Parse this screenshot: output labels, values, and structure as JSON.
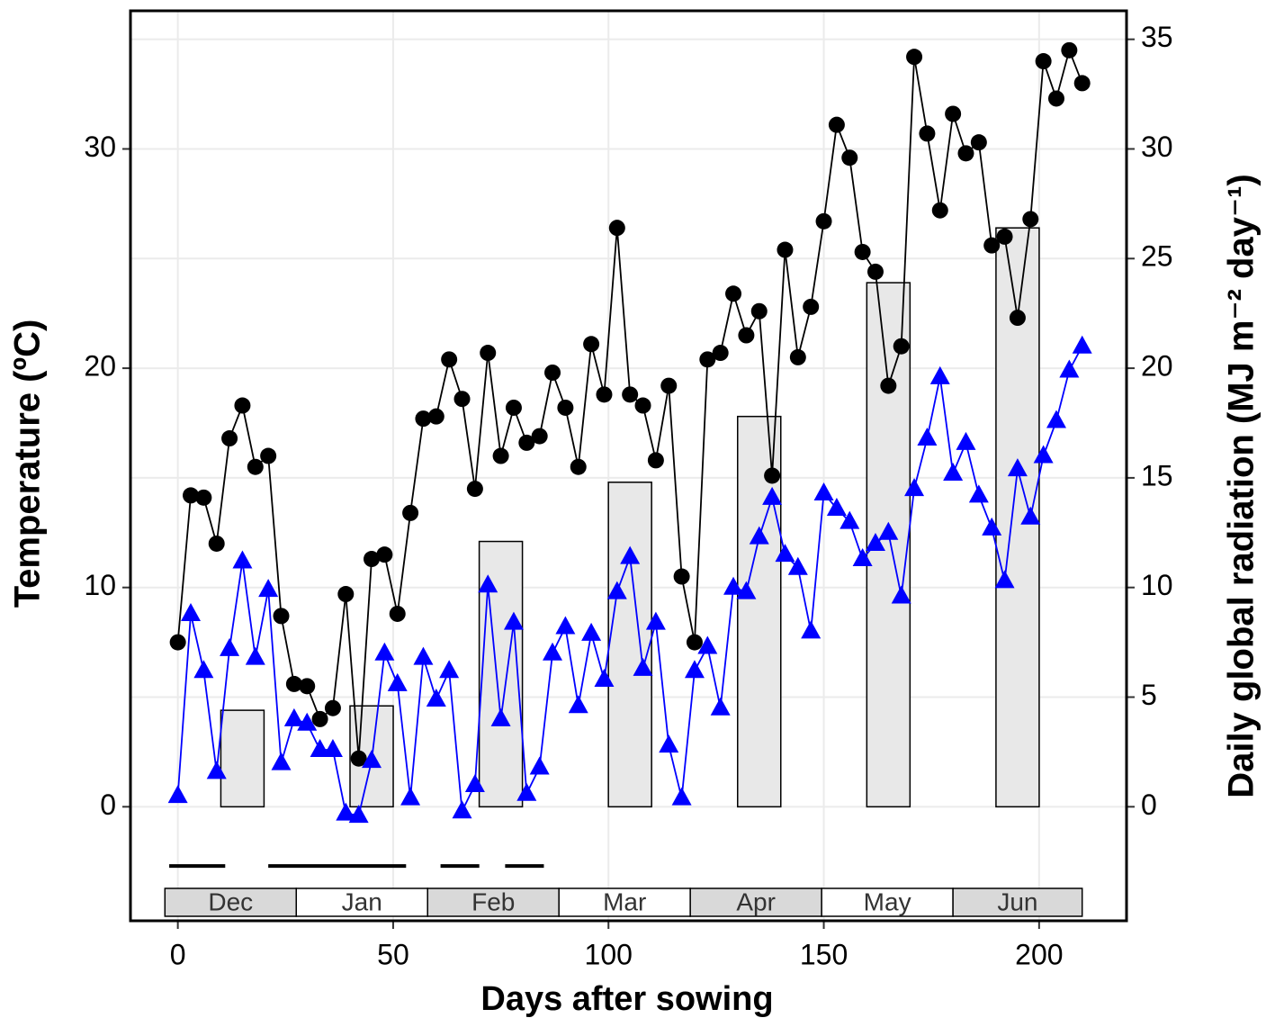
{
  "chart_data": {
    "type": "line",
    "x_label": "Days after sowing",
    "y_label": "Temperature (ºC)",
    "y2_label": "Daily global radiation (MJ m⁻² day⁻¹)",
    "xlim": [
      -11,
      220.3
    ],
    "ylim": [
      -5.2,
      36.3
    ],
    "y2lim": [
      -5.2,
      36.3
    ],
    "xticks": [
      0,
      50,
      100,
      150,
      200
    ],
    "yticks": [
      0,
      10,
      20,
      30
    ],
    "y2ticks": [
      0,
      5,
      10,
      15,
      20,
      25,
      30,
      35
    ],
    "grid": true,
    "bars": {
      "axis": "y2",
      "color": "#e8e8e8",
      "x": [
        15,
        45,
        75,
        105,
        135,
        165,
        195
      ],
      "values": [
        4.4,
        4.6,
        12.1,
        14.8,
        17.8,
        23.9,
        26.4
      ]
    },
    "x": [
      0,
      3,
      6,
      9,
      12,
      15,
      18,
      21,
      24,
      27,
      30,
      33,
      36,
      39,
      42,
      45,
      48,
      51,
      54,
      57,
      60,
      63,
      66,
      69,
      72,
      75,
      78,
      81,
      84,
      87,
      90,
      93,
      96,
      99,
      102,
      105,
      108,
      111,
      114,
      117,
      120,
      123,
      126,
      129,
      132,
      135,
      138,
      141,
      144,
      147,
      150,
      153,
      156,
      159,
      162,
      165,
      168,
      171,
      174,
      177,
      180,
      183,
      186,
      189,
      192,
      195,
      198,
      201,
      204,
      207,
      210
    ],
    "series": [
      {
        "color": "#000000",
        "marker": "circle",
        "values": [
          7.5,
          14.2,
          14.1,
          12,
          16.8,
          18.3,
          15.5,
          16,
          8.7,
          5.6,
          5.5,
          4.0,
          4.5,
          9.7,
          2.2,
          11.3,
          11.5,
          8.8,
          13.4,
          17.7,
          17.8,
          20.4,
          18.6,
          14.5,
          20.7,
          16,
          18.2,
          16.6,
          16.9,
          19.8,
          18.2,
          15.5,
          21.1,
          18.8,
          26.4,
          18.8,
          18.3,
          15.8,
          19.2,
          10.5,
          7.5,
          20.4,
          20.7,
          23.4,
          21.5,
          22.6,
          15.1,
          25.4,
          20.5,
          22.8,
          26.7,
          31.1,
          29.6,
          25.3,
          24.4,
          19.2,
          21,
          34.2,
          30.7,
          27.2,
          31.6,
          29.8,
          30.3,
          25.6,
          26,
          22.3,
          26.8,
          34,
          32.3,
          34.5,
          33
        ]
      },
      {
        "color": "#0000ff",
        "marker": "triangle",
        "values": [
          0.5,
          8.8,
          6.2,
          1.6,
          7.2,
          11.2,
          6.8,
          9.9,
          2,
          4,
          3.8,
          2.6,
          2.6,
          -0.3,
          -0.4,
          2.1,
          7,
          5.6,
          0.4,
          6.8,
          4.9,
          6.2,
          -0.2,
          1,
          10.1,
          4.0,
          8.4,
          0.6,
          1.8,
          7,
          8.2,
          4.6,
          7.9,
          5.8,
          9.8,
          11.4,
          6.3,
          8.4,
          2.8,
          0.4,
          6.2,
          7.3,
          4.5,
          10,
          9.8,
          12.3,
          14.1,
          11.5,
          10.9,
          8,
          14.3,
          13.6,
          13,
          11.3,
          12,
          12.5,
          9.6,
          14.5,
          16.8,
          19.6,
          15.2,
          16.6,
          14.2,
          12.7,
          10.3,
          15.4,
          13.2,
          16,
          17.6,
          19.9,
          21
        ]
      }
    ],
    "frost_level": -2.7,
    "frost_periods": [
      [
        -2,
        11
      ],
      [
        21,
        53
      ],
      [
        61,
        70
      ],
      [
        76,
        85
      ]
    ],
    "months": {
      "labels": [
        "Dec",
        "Jan",
        "Feb",
        "Mar",
        "Apr",
        "May",
        "Jun"
      ],
      "bounds": [
        -3,
        27.5,
        58,
        88.5,
        119,
        149.5,
        180,
        210
      ],
      "colors": [
        "#d9d9d9",
        "#ffffff",
        "#d9d9d9",
        "#ffffff",
        "#d9d9d9",
        "#ffffff",
        "#d9d9d9"
      ]
    }
  }
}
